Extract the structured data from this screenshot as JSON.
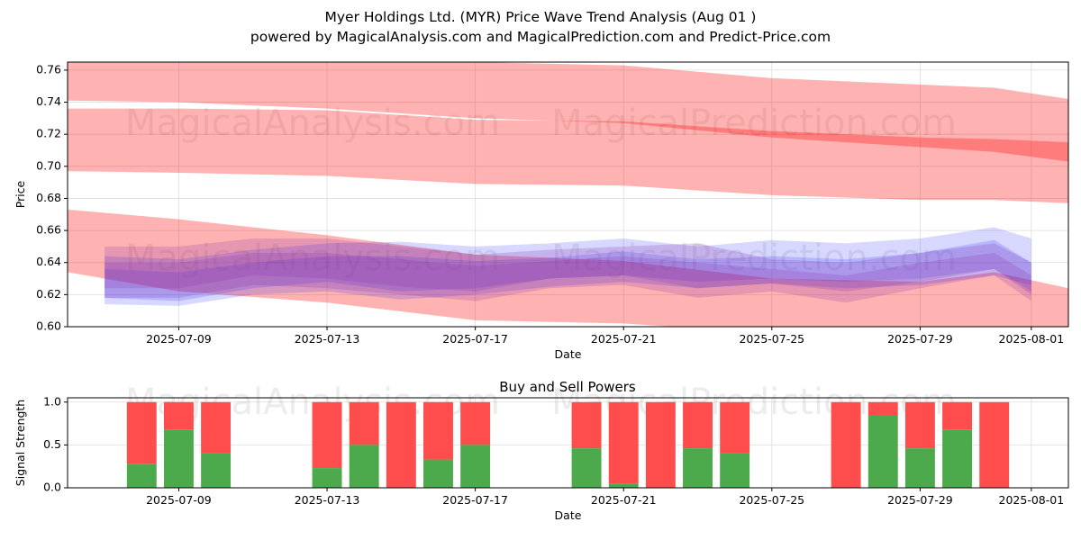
{
  "header": {
    "title": "Myer Holdings Ltd. (MYR) Price Wave Trend Analysis (Aug 01 )",
    "subtitle": "powered by MagicalAnalysis.com and MagicalPrediction.com and Predict-Price.com"
  },
  "watermarks": [
    "MagicalAnalysis.com",
    "MagicalPrediction.com"
  ],
  "colors": {
    "red": "#ff0000",
    "blue": "#2222ff",
    "purple": "#8833aa",
    "buy": "#4caa4c",
    "sell": "#ff4c4c",
    "grid": "#dddddd"
  },
  "chart_data": [
    {
      "type": "area",
      "title": "",
      "xlabel": "Date",
      "ylabel": "Price",
      "ylim": [
        0.6,
        0.765
      ],
      "xlim": [
        "2025-07-06",
        "2025-08-02"
      ],
      "grid": true,
      "x_ticks": [
        "2025-07-09",
        "2025-07-13",
        "2025-07-17",
        "2025-07-21",
        "2025-07-25",
        "2025-07-29",
        "2025-08-01"
      ],
      "y_ticks": [
        0.6,
        0.62,
        0.64,
        0.66,
        0.68,
        0.7,
        0.72,
        0.74,
        0.76
      ],
      "red_bands": [
        {
          "x": [
            "2025-07-06",
            "2025-07-09",
            "2025-07-13",
            "2025-07-17",
            "2025-07-21",
            "2025-07-25",
            "2025-07-29",
            "2025-07-31",
            "2025-08-02"
          ],
          "upper": [
            0.767,
            0.767,
            0.767,
            0.765,
            0.763,
            0.755,
            0.751,
            0.749,
            0.742
          ],
          "lower": [
            0.741,
            0.74,
            0.736,
            0.73,
            0.727,
            0.718,
            0.712,
            0.709,
            0.703
          ]
        },
        {
          "x": [
            "2025-07-06",
            "2025-07-09",
            "2025-07-13",
            "2025-07-17",
            "2025-07-21",
            "2025-07-25",
            "2025-07-29",
            "2025-07-31",
            "2025-08-02"
          ],
          "upper": [
            0.736,
            0.736,
            0.735,
            0.729,
            0.728,
            0.722,
            0.718,
            0.717,
            0.715
          ],
          "lower": [
            0.697,
            0.696,
            0.694,
            0.689,
            0.688,
            0.682,
            0.679,
            0.679,
            0.677
          ]
        },
        {
          "x": [
            "2025-07-06",
            "2025-07-09",
            "2025-07-13",
            "2025-07-17",
            "2025-07-21",
            "2025-07-25",
            "2025-07-29",
            "2025-07-31",
            "2025-08-02"
          ],
          "upper": [
            0.673,
            0.667,
            0.657,
            0.645,
            0.641,
            0.63,
            0.628,
            0.634,
            0.624
          ],
          "lower": [
            0.634,
            0.622,
            0.615,
            0.604,
            0.602,
            0.596,
            0.594,
            0.595,
            0.587
          ]
        }
      ],
      "blue_bands": [
        {
          "x": [
            "2025-07-07",
            "2025-07-09",
            "2025-07-11",
            "2025-07-13",
            "2025-07-15",
            "2025-07-17",
            "2025-07-19",
            "2025-07-21",
            "2025-07-23",
            "2025-07-25",
            "2025-07-27",
            "2025-07-29",
            "2025-07-31",
            "2025-08-01"
          ],
          "upper": [
            0.644,
            0.642,
            0.648,
            0.652,
            0.653,
            0.65,
            0.652,
            0.655,
            0.65,
            0.654,
            0.652,
            0.655,
            0.662,
            0.655
          ],
          "lower": [
            0.614,
            0.613,
            0.62,
            0.622,
            0.617,
            0.62,
            0.625,
            0.628,
            0.624,
            0.627,
            0.624,
            0.626,
            0.632,
            0.626
          ]
        },
        {
          "x": [
            "2025-07-07",
            "2025-07-09",
            "2025-07-11",
            "2025-07-13",
            "2025-07-15",
            "2025-07-17",
            "2025-07-19",
            "2025-07-21",
            "2025-07-23",
            "2025-07-25",
            "2025-07-27",
            "2025-07-29",
            "2025-07-31",
            "2025-08-01"
          ],
          "upper": [
            0.636,
            0.634,
            0.64,
            0.644,
            0.644,
            0.641,
            0.643,
            0.647,
            0.642,
            0.644,
            0.642,
            0.646,
            0.654,
            0.64
          ],
          "lower": [
            0.618,
            0.616,
            0.624,
            0.628,
            0.622,
            0.624,
            0.63,
            0.632,
            0.628,
            0.63,
            0.628,
            0.63,
            0.636,
            0.622
          ]
        }
      ],
      "purple_bands": [
        {
          "x": [
            "2025-07-07",
            "2025-07-09",
            "2025-07-11",
            "2025-07-13",
            "2025-07-15",
            "2025-07-17",
            "2025-07-19",
            "2025-07-21",
            "2025-07-23",
            "2025-07-25",
            "2025-07-27",
            "2025-07-29",
            "2025-07-31",
            "2025-08-01"
          ],
          "upper": [
            0.65,
            0.65,
            0.655,
            0.655,
            0.65,
            0.645,
            0.648,
            0.65,
            0.652,
            0.642,
            0.64,
            0.646,
            0.652,
            0.64
          ],
          "lower": [
            0.618,
            0.618,
            0.626,
            0.624,
            0.62,
            0.616,
            0.624,
            0.626,
            0.618,
            0.622,
            0.615,
            0.624,
            0.632,
            0.616
          ]
        },
        {
          "x": [
            "2025-07-07",
            "2025-07-09",
            "2025-07-11",
            "2025-07-13",
            "2025-07-15",
            "2025-07-17",
            "2025-07-19",
            "2025-07-21",
            "2025-07-23",
            "2025-07-25",
            "2025-07-27",
            "2025-07-29",
            "2025-07-31",
            "2025-08-01"
          ],
          "upper": [
            0.64,
            0.64,
            0.646,
            0.646,
            0.642,
            0.638,
            0.641,
            0.644,
            0.64,
            0.636,
            0.632,
            0.64,
            0.646,
            0.632
          ],
          "lower": [
            0.624,
            0.624,
            0.632,
            0.63,
            0.625,
            0.622,
            0.63,
            0.632,
            0.624,
            0.627,
            0.622,
            0.628,
            0.636,
            0.62
          ]
        }
      ]
    },
    {
      "type": "bar",
      "title": "Buy and Sell Powers",
      "xlabel": "Date",
      "ylabel": "Signal Strength",
      "ylim": [
        0,
        1.05
      ],
      "xlim": [
        "2025-07-06",
        "2025-08-02"
      ],
      "grid": true,
      "x_ticks": [
        "2025-07-09",
        "2025-07-13",
        "2025-07-17",
        "2025-07-21",
        "2025-07-25",
        "2025-07-29",
        "2025-08-01"
      ],
      "y_ticks": [
        "0.0",
        "0.5",
        "1.0"
      ],
      "bars": [
        {
          "date": "2025-07-08",
          "buy": 0.28
        },
        {
          "date": "2025-07-09",
          "buy": 0.68
        },
        {
          "date": "2025-07-10",
          "buy": 0.4
        },
        {
          "date": "2025-07-13",
          "buy": 0.23
        },
        {
          "date": "2025-07-14",
          "buy": 0.5
        },
        {
          "date": "2025-07-15",
          "buy": 0.0
        },
        {
          "date": "2025-07-16",
          "buy": 0.33
        },
        {
          "date": "2025-07-17",
          "buy": 0.5
        },
        {
          "date": "2025-07-20",
          "buy": 0.46
        },
        {
          "date": "2025-07-21",
          "buy": 0.05
        },
        {
          "date": "2025-07-22",
          "buy": 0.0
        },
        {
          "date": "2025-07-23",
          "buy": 0.46
        },
        {
          "date": "2025-07-24",
          "buy": 0.4
        },
        {
          "date": "2025-07-27",
          "buy": 0.0
        },
        {
          "date": "2025-07-28",
          "buy": 0.84
        },
        {
          "date": "2025-07-29",
          "buy": 0.46
        },
        {
          "date": "2025-07-30",
          "buy": 0.68
        },
        {
          "date": "2025-07-31",
          "buy": 0.0
        }
      ]
    }
  ]
}
